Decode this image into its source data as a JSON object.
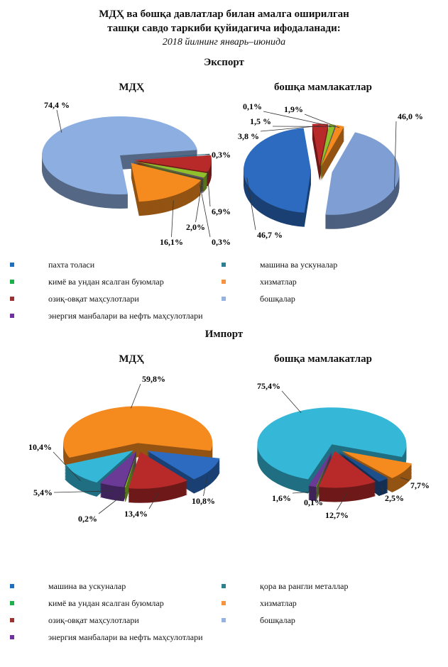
{
  "title_line1": "МДҲ ва бошқа давлатлар билан амалга оширилган",
  "title_line2": "ташқи савдо таркиби қуйидагича ифодаланади:",
  "subtitle": "2018 йилнинг январь–июнида",
  "export_title": "Экспорт",
  "import_title": "Импорт",
  "export_legend": [
    {
      "label": "пахта толаси",
      "color": "#1f6fc0"
    },
    {
      "label": "машина ва ускуналар",
      "color": "#2e7f91"
    },
    {
      "label": "кимё ва ундан ясалган буюмлар",
      "color": "#1bb04a"
    },
    {
      "label": "хизматлар",
      "color": "#f59340"
    },
    {
      "label": "озиқ-овқат маҳсулотлари",
      "color": "#9b3333"
    },
    {
      "label": "бошқалар",
      "color": "#95b3e0"
    },
    {
      "label": "энергия манбалари ва нефть маҳсулотлари",
      "color": "#7030a0"
    }
  ],
  "import_legend": [
    {
      "label": "машина ва ускуналар",
      "color": "#1f6fc0"
    },
    {
      "label": "қора ва рангли металлар",
      "color": "#2e7f91"
    },
    {
      "label": "кимё ва ундан ясалган буюмлар",
      "color": "#1bb04a"
    },
    {
      "label": "хизматлар",
      "color": "#f59340"
    },
    {
      "label": "озиқ-овқат маҳсулотлари",
      "color": "#9b3333"
    },
    {
      "label": "бошқалар",
      "color": "#95b3e0"
    },
    {
      "label": "энергия манбалари ва нефть маҳсулотлари",
      "color": "#7030a0"
    }
  ],
  "chart_data": [
    {
      "type": "pie",
      "title": "МДҲ",
      "section": "Экспорт",
      "slices": [
        {
          "category": "машина ва ускуналар",
          "value": 0.3,
          "label": "0,3%",
          "color": "#1f5f78"
        },
        {
          "category": "озиқ-овқат маҳсулотлари",
          "value": 6.9,
          "label": "6,9%",
          "color": "#b82a2a"
        },
        {
          "category": "кимё ва ундан ясалган буюмлар",
          "value": 2.0,
          "label": "2,0%",
          "color": "#8fbf2c"
        },
        {
          "category": "энергия манбалари ва нефть маҳсулотлари",
          "value": 0.3,
          "label": "0,3%",
          "color": "#6a3a96"
        },
        {
          "category": "хизматлар",
          "value": 16.1,
          "label": "16,1%",
          "color": "#f58a1f"
        },
        {
          "category": "бошқалар",
          "value": 74.4,
          "label": "74,4 %",
          "color": "#8caee0"
        }
      ]
    },
    {
      "type": "pie",
      "title": "бошқа мамлакатлар",
      "section": "Экспорт",
      "slices": [
        {
          "category": "бошқалар",
          "value": 46.0,
          "label": "46,0 %",
          "color": "#7f9fd4"
        },
        {
          "category": "пахта толаси",
          "value": 46.7,
          "label": "46,7 %",
          "color": "#2c6bbf"
        },
        {
          "category": "озиқ-овқат маҳсулотлари",
          "value": 3.8,
          "label": "3,8 %",
          "color": "#b82a2a"
        },
        {
          "category": "кимё ва ундан ясалган буюмлар",
          "value": 1.5,
          "label": "1,5 %",
          "color": "#8fbf2c"
        },
        {
          "category": "энергия манбалари ва нефть маҳсулотлари",
          "value": 0.1,
          "label": "0,1%",
          "color": "#6a3a96"
        },
        {
          "category": "хизматлар",
          "value": 1.9,
          "label": "1,9%",
          "color": "#f58a1f"
        }
      ]
    },
    {
      "type": "pie",
      "title": "МДҲ",
      "section": "Импорт",
      "slices": [
        {
          "category": "машина ва ускуналар",
          "value": 10.8,
          "label": "10,8%",
          "color": "#2c6bbf"
        },
        {
          "category": "озиқ-овқат маҳсулотлари",
          "value": 13.4,
          "label": "13,4%",
          "color": "#b82a2a"
        },
        {
          "category": "кимё ва ундан ясалган буюмлар",
          "value": 0.2,
          "label": "0,2%",
          "color": "#8fbf2c"
        },
        {
          "category": "энергия манбалари ва нефть маҳсулотлари",
          "value": 5.4,
          "label": "5,4%",
          "color": "#6a3a96"
        },
        {
          "category": "қора ва рангли металлар",
          "value": 10.4,
          "label": "10,4%",
          "color": "#35b8d8"
        },
        {
          "category": "хизматлар",
          "value": 59.8,
          "label": "59,8%",
          "color": "#f58a1f"
        }
      ]
    },
    {
      "type": "pie",
      "title": "бошқа мамлакатлар",
      "section": "Импорт",
      "slices": [
        {
          "category": "хизматлар",
          "value": 7.7,
          "label": "7,7%",
          "color": "#f58a1f"
        },
        {
          "category": "машина ва ускуналар",
          "value": 2.5,
          "label": "2,5%",
          "color": "#1f4f8a"
        },
        {
          "category": "озиқ-овқат маҳсулотлари",
          "value": 12.7,
          "label": "12,7%",
          "color": "#b82a2a"
        },
        {
          "category": "кимё ва ундан ясалган буюмлар",
          "value": 0.1,
          "label": "0,1%",
          "color": "#8fbf2c"
        },
        {
          "category": "энергия манбалари ва нефть маҳсулотлари",
          "value": 1.6,
          "label": "1,6%",
          "color": "#6a3a96"
        },
        {
          "category": "бошқалар",
          "value": 75.4,
          "label": "75,4%",
          "color": "#35b8d8"
        }
      ]
    }
  ]
}
